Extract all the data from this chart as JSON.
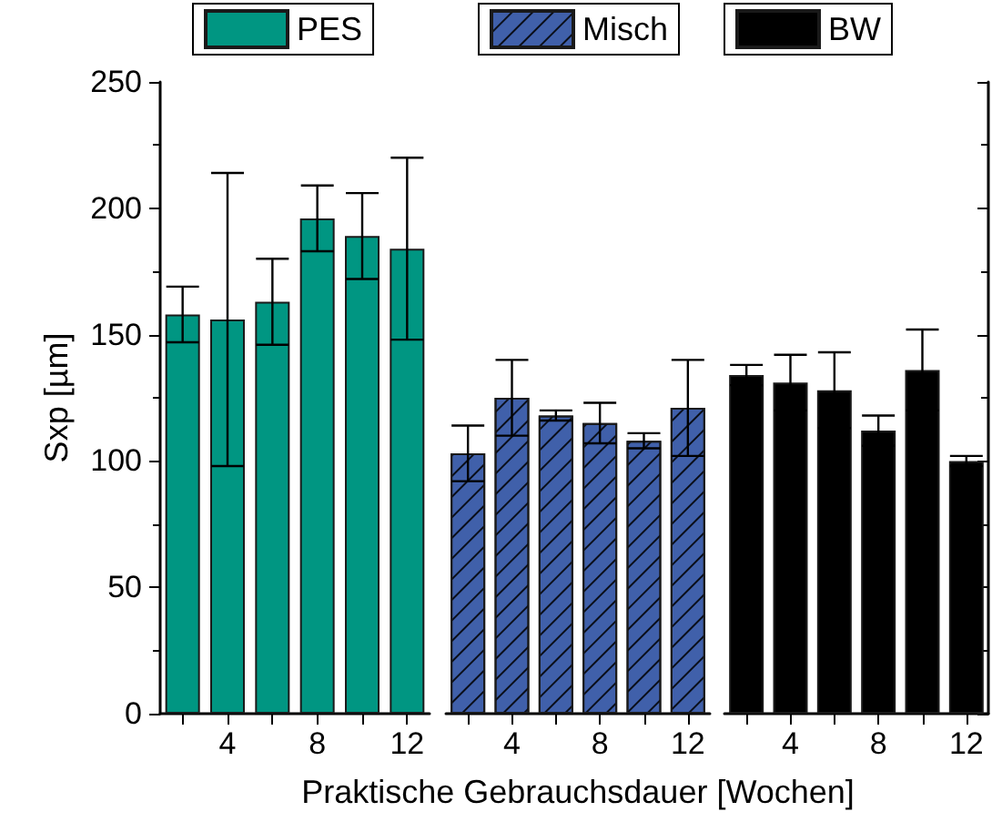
{
  "chart_data": [
    {
      "type": "bar",
      "ylabel": "Sxp [µm]",
      "x": [
        2,
        4,
        6,
        8,
        10,
        12
      ],
      "xlim": [
        1,
        13
      ],
      "xticks": [
        {
          "value": 2,
          "label": null
        },
        4,
        {
          "value": 6,
          "label": null
        },
        8,
        {
          "value": 10,
          "label": null
        },
        12
      ],
      "ylim": [
        0,
        250
      ],
      "yticks": [
        0,
        50,
        100,
        150,
        200,
        250
      ],
      "legend": "top",
      "series": [
        {
          "name": "PES",
          "color": "#009682",
          "values": [
            158,
            156,
            163,
            196,
            189,
            184
          ],
          "errors": [
            11,
            58,
            17,
            13,
            17,
            36
          ]
        }
      ]
    },
    {
      "type": "bar",
      "xlabel": "Praktische Gebrauchsdauer [Wochen]",
      "x": [
        2,
        4,
        6,
        8,
        10,
        12
      ],
      "xlim": [
        1,
        13
      ],
      "xticks": [
        {
          "value": 2,
          "label": null
        },
        4,
        {
          "value": 6,
          "label": null
        },
        8,
        {
          "value": 10,
          "label": null
        },
        12
      ],
      "ylim": [
        0,
        250
      ],
      "legend": "top",
      "tick_labels": "x",
      "series": [
        {
          "name": "Misch",
          "color": "#4060aa",
          "values": [
            103,
            125,
            118,
            115,
            108,
            121
          ],
          "errors": [
            11,
            15,
            2,
            8,
            3,
            19
          ]
        }
      ]
    },
    {
      "type": "bar",
      "x": [
        2,
        4,
        6,
        8,
        10,
        12
      ],
      "xlim": [
        1,
        13
      ],
      "xticks": [
        {
          "value": 2,
          "label": null
        },
        4,
        {
          "value": 6,
          "label": null
        },
        8,
        {
          "value": 10,
          "label": null
        },
        12
      ],
      "ylim": [
        0,
        250
      ],
      "yticks": [
        0,
        50,
        100,
        150,
        200,
        250
      ],
      "legend": "top",
      "tick_labels": "x",
      "series": [
        {
          "name": "BW",
          "color": "#000000",
          "values": [
            134,
            131,
            128,
            112,
            136,
            100
          ],
          "errors": [
            4,
            11,
            15,
            6,
            16,
            2
          ]
        }
      ]
    }
  ]
}
